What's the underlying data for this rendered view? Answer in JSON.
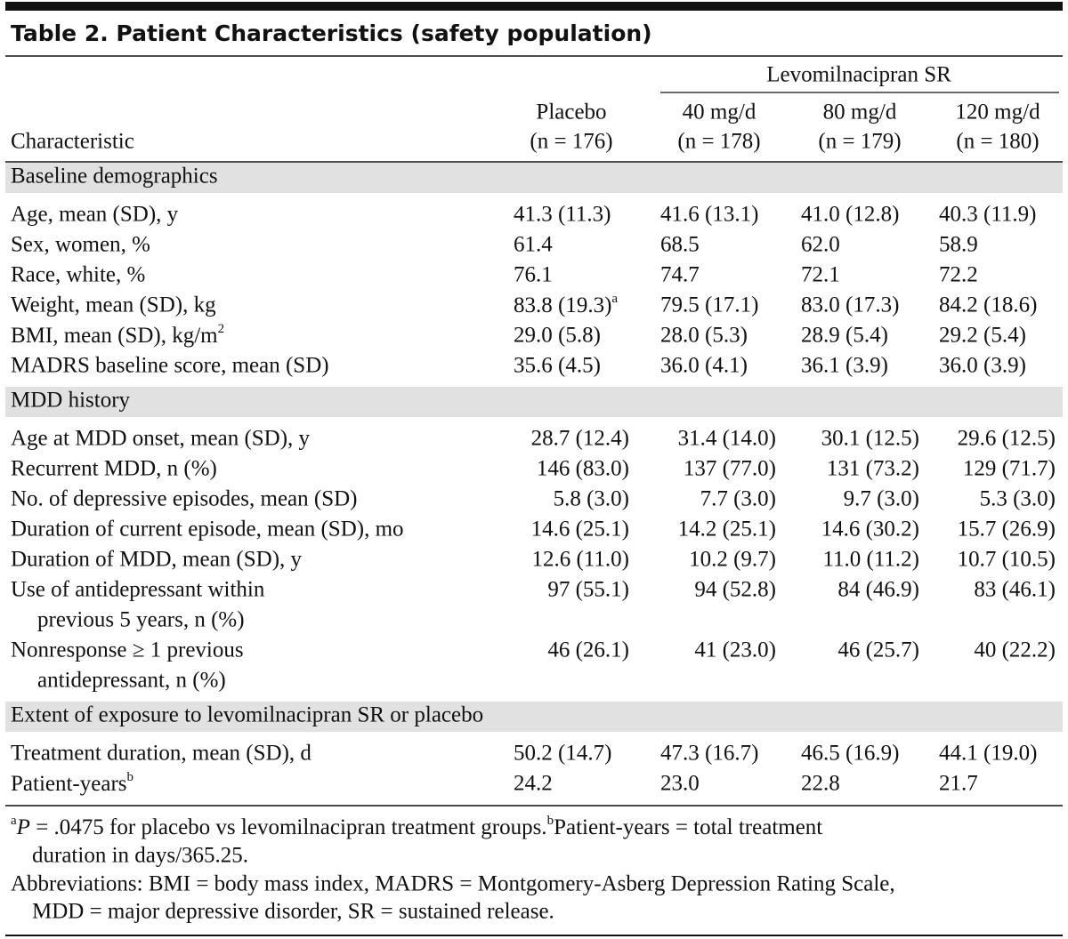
{
  "title": "Table 2. Patient Characteristics (safety population)",
  "group_header": "Levomilnacipran SR",
  "columns": [
    [
      "Characteristic"
    ],
    [
      "Placebo",
      "(n = 176)"
    ],
    [
      "40 mg/d",
      "(n = 178)"
    ],
    [
      "80 mg/d",
      "(n = 179)"
    ],
    [
      "120 mg/d",
      "(n = 180)"
    ]
  ],
  "sections": [
    {
      "title": "Baseline demographics",
      "align": "left",
      "rows": [
        {
          "label": "Age, mean (SD), y",
          "values": [
            "41.3 (11.3)",
            "41.6 (13.1)",
            "41.0 (12.8)",
            "40.3 (11.9)"
          ]
        },
        {
          "label": "Sex, women, %",
          "values": [
            "61.4",
            "68.5",
            "62.0",
            "58.9"
          ]
        },
        {
          "label": "Race, white, %",
          "values": [
            "76.1",
            "74.7",
            "72.1",
            "72.2"
          ]
        },
        {
          "label": "Weight, mean (SD), kg",
          "values": [
            {
              "text": "83.8 (19.3)",
              "sup": "a"
            },
            "79.5 (17.1)",
            "83.0 (17.3)",
            "84.2 (18.6)"
          ]
        },
        {
          "label": {
            "text": "BMI, mean (SD), kg/m",
            "sup": "2"
          },
          "values": [
            "29.0 (5.8)",
            "28.0 (5.3)",
            "28.9 (5.4)",
            "29.2 (5.4)"
          ]
        },
        {
          "label": "MADRS baseline score, mean (SD)",
          "values": [
            "35.6 (4.5)",
            "36.0 (4.1)",
            "36.1 (3.9)",
            "36.0 (3.9)"
          ]
        }
      ]
    },
    {
      "title": "MDD history",
      "align": "right",
      "rows": [
        {
          "label": "Age at MDD onset, mean (SD), y",
          "values": [
            "28.7 (12.4)",
            "31.4 (14.0)",
            "30.1 (12.5)",
            "29.6 (12.5)"
          ]
        },
        {
          "label": "Recurrent MDD, n (%)",
          "values": [
            "146 (83.0)",
            "137 (77.0)",
            "131 (73.2)",
            "129 (71.7)"
          ]
        },
        {
          "label": "No. of depressive episodes, mean (SD)",
          "values": [
            "5.8 (3.0)",
            "7.7 (3.0)",
            "9.7 (3.0)",
            "5.3 (3.0)"
          ]
        },
        {
          "label": "Duration of current episode, mean (SD), mo",
          "values": [
            "14.6 (25.1)",
            "14.2 (25.1)",
            "14.6 (30.2)",
            "15.7 (26.9)"
          ]
        },
        {
          "label": "Duration of MDD, mean (SD), y",
          "values": [
            "12.6 (11.0)",
            "10.2 (9.7)",
            "11.0 (11.2)",
            "10.7 (10.5)"
          ]
        },
        {
          "label": [
            "Use of antidepressant within",
            "previous 5 years, n (%)"
          ],
          "values": [
            "97 (55.1)",
            "94 (52.8)",
            "84 (46.9)",
            "83 (46.1)"
          ]
        },
        {
          "label": [
            "Nonresponse ≥ 1 previous",
            "antidepressant, n (%)"
          ],
          "values": [
            "46 (26.1)",
            "41 (23.0)",
            "46 (25.7)",
            "40 (22.2)"
          ]
        }
      ]
    },
    {
      "title": "Extent of exposure to levomilnacipran SR or placebo",
      "align": "left",
      "rows": [
        {
          "label": "Treatment duration, mean (SD), d",
          "values": [
            "50.2 (14.7)",
            "47.3 (16.7)",
            "46.5 (16.9)",
            "44.1 (19.0)"
          ]
        },
        {
          "label": {
            "text": "Patient-years",
            "sup": "b"
          },
          "values": [
            "24.2",
            "23.0",
            "22.8",
            "21.7"
          ]
        }
      ]
    }
  ],
  "footnotes": {
    "a": {
      "mark": "a",
      "italic": "P",
      "text": " = .0475 for placebo vs levomilnacipran treatment groups."
    },
    "b": {
      "mark": "b",
      "lines": [
        "Patient-years = total treatment",
        "duration in days/365.25."
      ]
    },
    "abbreviations": [
      "Abbreviations: BMI = body mass index, MADRS = Montgomery-Asberg Depression Rating Scale,",
      "MDD = major depressive disorder, SR = sustained release."
    ]
  }
}
